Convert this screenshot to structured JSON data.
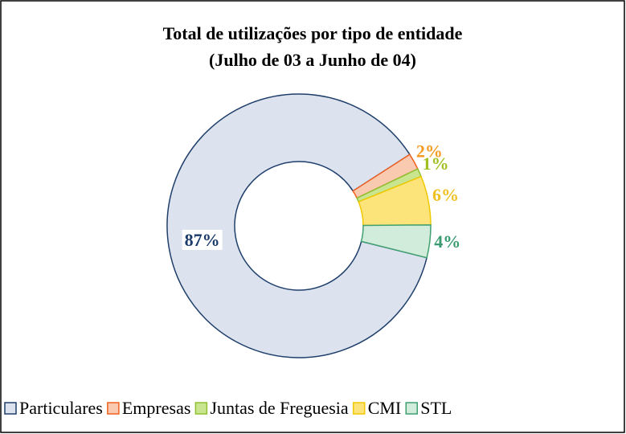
{
  "chart_data": {
    "type": "donut",
    "title": "Total de utilizações por tipo de entidade",
    "subtitle": "(Julho de 03 a Junho de 04)",
    "categories": [
      "Particulares",
      "Empresas",
      "Juntas de Freguesia",
      "CMI",
      "STL"
    ],
    "values": [
      87,
      2,
      1,
      6,
      4
    ],
    "value_labels": [
      "87%",
      "2%",
      "1%",
      "6%",
      "4%"
    ],
    "colors": [
      "#dde3ee",
      "#f9c9b0",
      "#c9e58f",
      "#fde47a",
      "#d2ecdc"
    ],
    "legend": "bottom"
  }
}
